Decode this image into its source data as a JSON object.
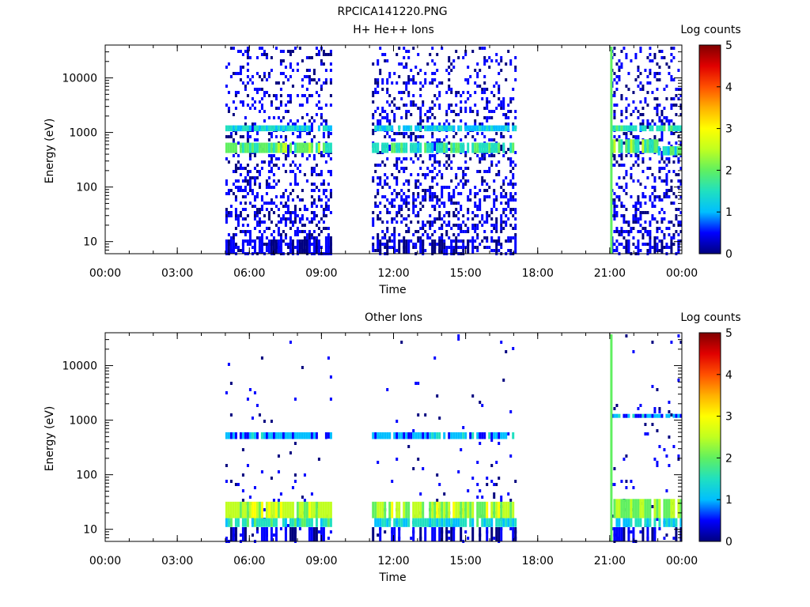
{
  "figure_title": "RPCICA141220.PNG",
  "colors": {
    "colormap": [
      "#00007f",
      "#0000ff",
      "#00bfff",
      "#20e0c0",
      "#60f060",
      "#c0ff20",
      "#ffff00",
      "#ffb000",
      "#ff5000",
      "#e00000",
      "#800000"
    ],
    "background": "#ffffff",
    "axes": "#000000"
  },
  "chart_data": [
    {
      "type": "heatmap",
      "title": "H+ He++ Ions",
      "xlabel": "Time",
      "ylabel": "Energy (eV)",
      "x_ticks": [
        "00:00",
        "03:00",
        "06:00",
        "09:00",
        "12:00",
        "15:00",
        "18:00",
        "21:00",
        "00:00"
      ],
      "xlim_hours": [
        0,
        24
      ],
      "y_ticks": [
        {
          "value": 10,
          "label": "10"
        },
        {
          "value": 100,
          "label": "100"
        },
        {
          "value": 1000,
          "label": "1000"
        },
        {
          "value": 10000,
          "label": "10000"
        }
      ],
      "ylim_eV": [
        6,
        40000
      ],
      "y_scale": "log",
      "colorbar": {
        "label": "Log counts",
        "ticks": [
          "0",
          "1",
          "2",
          "3",
          "4",
          "5"
        ],
        "range": [
          0,
          5
        ]
      },
      "data_intervals_hours": [
        [
          5.0,
          9.4
        ],
        [
          11.1,
          17.1
        ],
        [
          21.05,
          24.0
        ]
      ],
      "bands": [
        {
          "t": [
            5.0,
            9.4
          ],
          "e": [
            1050,
            1350
          ],
          "level": 1.3
        },
        {
          "t": [
            5.0,
            9.4
          ],
          "e": [
            420,
            650
          ],
          "level": 1.9
        },
        {
          "t": [
            11.1,
            17.1
          ],
          "e": [
            1050,
            1350
          ],
          "level": 1.2
        },
        {
          "t": [
            11.1,
            17.1
          ],
          "e": [
            420,
            650
          ],
          "level": 1.6
        },
        {
          "t": [
            21.05,
            24.0
          ],
          "e": [
            1050,
            1350
          ],
          "level": 1.5
        },
        {
          "t": [
            21.05,
            23.0
          ],
          "e": [
            420,
            750
          ],
          "level": 2.0
        },
        {
          "t": [
            23.0,
            24.0
          ],
          "e": [
            380,
            560
          ],
          "level": 1.6
        }
      ],
      "spike": {
        "t": 21.05,
        "level": 1.8
      }
    },
    {
      "type": "heatmap",
      "title": "Other Ions",
      "xlabel": "Time",
      "ylabel": "Energy (eV)",
      "x_ticks": [
        "00:00",
        "03:00",
        "06:00",
        "09:00",
        "12:00",
        "15:00",
        "18:00",
        "21:00",
        "00:00"
      ],
      "xlim_hours": [
        0,
        24
      ],
      "y_ticks": [
        {
          "value": 10,
          "label": "10"
        },
        {
          "value": 100,
          "label": "100"
        },
        {
          "value": 1000,
          "label": "1000"
        },
        {
          "value": 10000,
          "label": "10000"
        }
      ],
      "ylim_eV": [
        6,
        40000
      ],
      "y_scale": "log",
      "colorbar": {
        "label": "Log counts",
        "ticks": [
          "0",
          "1",
          "2",
          "3",
          "4",
          "5"
        ],
        "range": [
          0,
          5
        ]
      },
      "data_intervals_hours": [
        [
          5.0,
          9.4
        ],
        [
          11.1,
          17.1
        ],
        [
          21.05,
          24.0
        ]
      ],
      "bands": [
        {
          "t": [
            5.0,
            9.4
          ],
          "e": [
            16,
            32
          ],
          "level": 2.6
        },
        {
          "t": [
            5.0,
            9.4
          ],
          "e": [
            11,
            16
          ],
          "level": 1.6
        },
        {
          "t": [
            11.1,
            17.1
          ],
          "e": [
            16,
            32
          ],
          "level": 2.4
        },
        {
          "t": [
            11.1,
            17.1
          ],
          "e": [
            11,
            16
          ],
          "level": 1.4
        },
        {
          "t": [
            21.05,
            24.0
          ],
          "e": [
            16,
            36
          ],
          "level": 2.3
        },
        {
          "t": [
            21.05,
            24.0
          ],
          "e": [
            11,
            16
          ],
          "level": 1.3
        },
        {
          "t": [
            5.0,
            9.4
          ],
          "e": [
            450,
            600
          ],
          "level": 0.9
        },
        {
          "t": [
            11.1,
            17.1
          ],
          "e": [
            450,
            600
          ],
          "level": 0.9
        },
        {
          "t": [
            21.05,
            24.0
          ],
          "e": [
            1100,
            1300
          ],
          "level": 0.9
        }
      ],
      "spike": {
        "t": 21.05,
        "level": 1.8
      }
    }
  ]
}
